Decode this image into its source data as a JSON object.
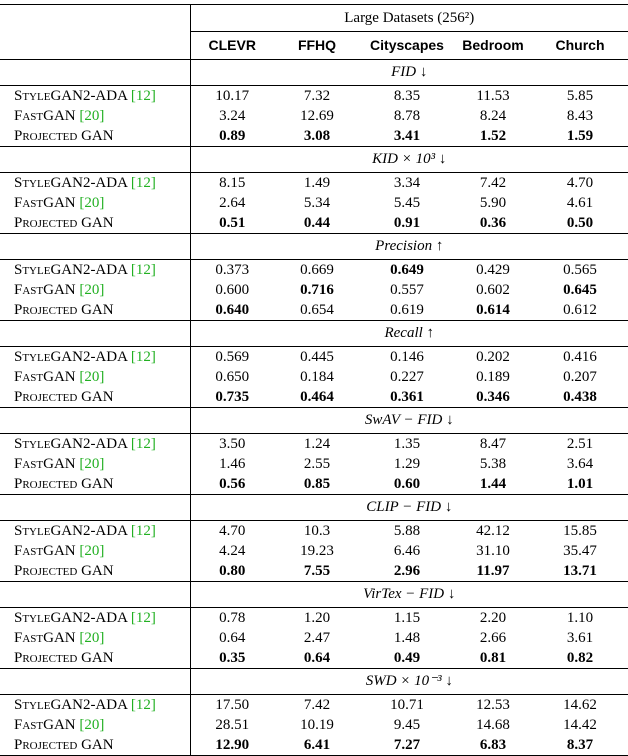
{
  "table": {
    "group_title": "Large Datasets (256²)",
    "columns": [
      "CLEVR",
      "FFHQ",
      "Cityscapes",
      "Bedroom",
      "Church"
    ],
    "methods": [
      {
        "name": "StyleGAN2-ADA",
        "ref": "[12]"
      },
      {
        "name": "FastGAN",
        "ref": "[20]"
      },
      {
        "name": "Projected GAN"
      }
    ],
    "sections": [
      {
        "metric": "FID ↓",
        "best_row": [
          2,
          2,
          2,
          2,
          2
        ],
        "rows": [
          [
            "10.17",
            "7.32",
            "8.35",
            "11.53",
            "5.85"
          ],
          [
            "3.24",
            "12.69",
            "8.78",
            "8.24",
            "8.43"
          ],
          [
            "0.89",
            "3.08",
            "3.41",
            "1.52",
            "1.59"
          ]
        ]
      },
      {
        "metric": "KID × 10³ ↓",
        "best_row": [
          2,
          2,
          2,
          2,
          2
        ],
        "rows": [
          [
            "8.15",
            "1.49",
            "3.34",
            "7.42",
            "4.70"
          ],
          [
            "2.64",
            "5.34",
            "5.45",
            "5.90",
            "4.61"
          ],
          [
            "0.51",
            "0.44",
            "0.91",
            "0.36",
            "0.50"
          ]
        ]
      },
      {
        "metric": "Precision ↑",
        "best_row": [
          2,
          1,
          0,
          2,
          1
        ],
        "rows": [
          [
            "0.373",
            "0.669",
            "0.649",
            "0.429",
            "0.565"
          ],
          [
            "0.600",
            "0.716",
            "0.557",
            "0.602",
            "0.645"
          ],
          [
            "0.640",
            "0.654",
            "0.619",
            "0.614",
            "0.612"
          ]
        ]
      },
      {
        "metric": "Recall ↑",
        "best_row": [
          2,
          2,
          2,
          2,
          2
        ],
        "rows": [
          [
            "0.569",
            "0.445",
            "0.146",
            "0.202",
            "0.416"
          ],
          [
            "0.650",
            "0.184",
            "0.227",
            "0.189",
            "0.207"
          ],
          [
            "0.735",
            "0.464",
            "0.361",
            "0.346",
            "0.438"
          ]
        ]
      },
      {
        "metric": "SwAV − FID ↓",
        "best_row": [
          2,
          2,
          2,
          2,
          2
        ],
        "rows": [
          [
            "3.50",
            "1.24",
            "1.35",
            "8.47",
            "2.51"
          ],
          [
            "1.46",
            "2.55",
            "1.29",
            "5.38",
            "3.64"
          ],
          [
            "0.56",
            "0.85",
            "0.60",
            "1.44",
            "1.01"
          ]
        ]
      },
      {
        "metric": "CLIP − FID ↓",
        "best_row": [
          2,
          2,
          2,
          2,
          2
        ],
        "rows": [
          [
            "4.70",
            "10.3",
            "5.88",
            "42.12",
            "15.85"
          ],
          [
            "4.24",
            "19.23",
            "6.46",
            "31.10",
            "35.47"
          ],
          [
            "0.80",
            "7.55",
            "2.96",
            "11.97",
            "13.71"
          ]
        ]
      },
      {
        "metric": "VirTex − FID ↓",
        "best_row": [
          2,
          2,
          2,
          2,
          2
        ],
        "rows": [
          [
            "0.78",
            "1.20",
            "1.15",
            "2.20",
            "1.10"
          ],
          [
            "0.64",
            "2.47",
            "1.48",
            "2.66",
            "3.61"
          ],
          [
            "0.35",
            "0.64",
            "0.49",
            "0.81",
            "0.82"
          ]
        ]
      },
      {
        "metric": "SWD × 10⁻³ ↓",
        "best_row": [
          2,
          2,
          2,
          2,
          2
        ],
        "rows": [
          [
            "17.50",
            "7.42",
            "10.71",
            "12.53",
            "14.62"
          ],
          [
            "28.51",
            "10.19",
            "9.45",
            "14.68",
            "14.42"
          ],
          [
            "12.90",
            "6.41",
            "7.27",
            "6.83",
            "8.37"
          ]
        ]
      }
    ]
  }
}
